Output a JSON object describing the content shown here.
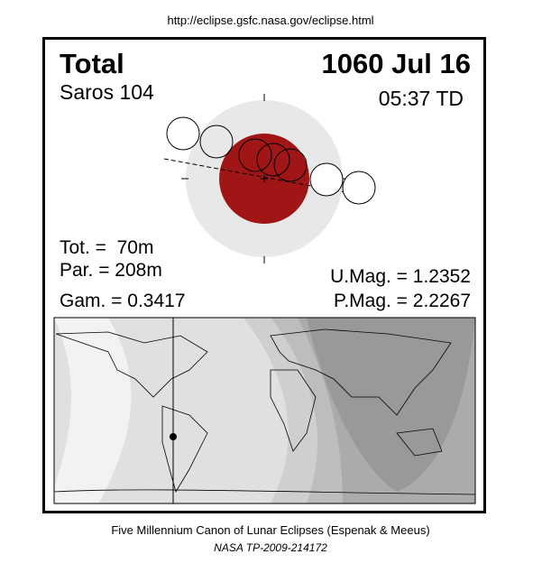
{
  "header": {
    "url": "http://eclipse.gsfc.nasa.gov/eclipse.html"
  },
  "eclipse": {
    "type": "Total",
    "date": "1060 Jul 16",
    "saros": "Saros 104",
    "time": "05:37 TD"
  },
  "stats": {
    "total": "Tot. =  70m",
    "partial": "Par. = 208m",
    "gamma": "Gam. = 0.3417",
    "umbral_mag": "U.Mag. = 1.2352",
    "penumbral_mag": "P.Mag. = 2.2267"
  },
  "footer": {
    "line1": "Five Millennium Canon of Lunar Eclipses (Espenak & Meeus)",
    "line2": "NASA TP-2009-214172"
  }
}
